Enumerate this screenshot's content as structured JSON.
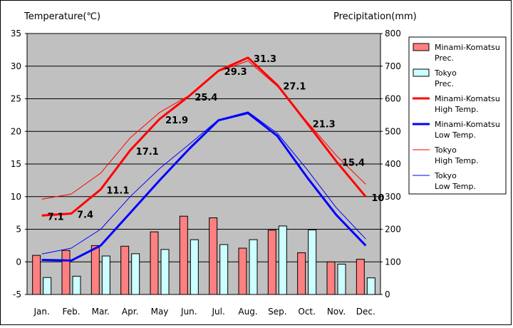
{
  "chart_data": {
    "type": "bar",
    "y_left_title": "Temperature(℃)",
    "y_right_title": "Precipitation(mm)",
    "categories": [
      "Jan.",
      "Feb.",
      "Mar.",
      "Apr.",
      "May",
      "Jun.",
      "Jul.",
      "Aug.",
      "Sep.",
      "Oct.",
      "Nov.",
      "Dec."
    ],
    "ylim_left": [
      -5,
      35
    ],
    "left_ticks": [
      "35",
      "30",
      "25",
      "20",
      "15",
      "10",
      "5",
      "0",
      "-5"
    ],
    "ylim_right": [
      0,
      800
    ],
    "right_ticks": [
      "800",
      "700",
      "600",
      "500",
      "400",
      "300",
      "200",
      "100",
      "0"
    ],
    "grid": true,
    "legend_position": "right",
    "series": [
      {
        "name": "Minami-Komatsu Prec.",
        "kind": "bar",
        "axis": "right",
        "color": "#ff8080",
        "values": [
          120,
          135,
          150,
          148,
          192,
          240,
          235,
          142,
          197,
          128,
          100,
          108
        ]
      },
      {
        "name": "Tokyo Prec.",
        "kind": "bar",
        "axis": "right",
        "color": "#ccffff",
        "values": [
          52,
          56,
          118,
          125,
          138,
          168,
          153,
          168,
          210,
          198,
          93,
          51
        ]
      },
      {
        "name": "Minami-Komatsu High Temp.",
        "kind": "line",
        "axis": "left",
        "color": "#ff0000",
        "width": 3,
        "values": [
          7.1,
          7.4,
          11.1,
          17.1,
          21.9,
          25.4,
          29.3,
          31.3,
          27.1,
          21.3,
          15.4,
          10.0
        ]
      },
      {
        "name": "Minami-Komatsu Low Temp.",
        "kind": "line",
        "axis": "left",
        "color": "#0000ff",
        "width": 3,
        "values": [
          0.3,
          0.2,
          2.5,
          7.5,
          12.5,
          17.3,
          21.7,
          22.8,
          19.3,
          13.0,
          7.2,
          2.5
        ]
      },
      {
        "name": "Tokyo High Temp.",
        "kind": "line",
        "axis": "left",
        "color": "#ff0000",
        "width": 1,
        "values": [
          9.6,
          10.4,
          13.6,
          19.0,
          22.9,
          25.5,
          29.2,
          30.8,
          26.9,
          21.5,
          16.3,
          11.9
        ]
      },
      {
        "name": "Tokyo Low Temp.",
        "kind": "line",
        "axis": "left",
        "color": "#0000ff",
        "width": 1,
        "values": [
          1.2,
          2.1,
          5.0,
          10.0,
          14.3,
          18.0,
          21.8,
          23.0,
          19.7,
          14.2,
          8.3,
          3.5
        ]
      }
    ],
    "data_labels": [
      "7.1",
      "7.4",
      "11.1",
      "17.1",
      "21.9",
      "25.4",
      "29.3",
      "31.3",
      "27.1",
      "21.3",
      "15.4",
      "10"
    ],
    "legend": [
      {
        "line1": "Minami-Komatsu",
        "line2": "Prec."
      },
      {
        "line1": "Tokyo",
        "line2": "Prec."
      },
      {
        "line1": "Minami-Komatsu",
        "line2": "High Temp."
      },
      {
        "line1": "Minami-Komatsu",
        "line2": "Low Temp."
      },
      {
        "line1": "Tokyo",
        "line2": "High Temp."
      },
      {
        "line1": "Tokyo",
        "line2": "Low Temp."
      }
    ],
    "colors": {
      "plot_background": "#c0c0c0",
      "legend_background": "#ffffff",
      "grid": "#000000"
    }
  }
}
